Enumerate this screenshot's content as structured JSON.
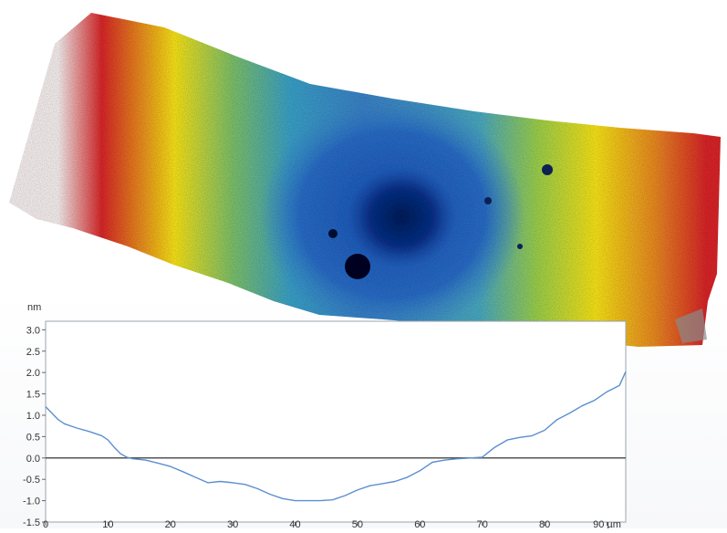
{
  "surface": {
    "rendering": "3D surface height map",
    "colormap": [
      "#f5eeee",
      "#d8282a",
      "#f6e21a",
      "#3b82c6",
      "#0d2a78"
    ]
  },
  "chart_data": {
    "type": "line",
    "title": "",
    "xlabel": "",
    "ylabel": "",
    "x_unit": "µm",
    "y_unit": "nm",
    "xlim": [
      0,
      93
    ],
    "ylim": [
      -1.5,
      3.2
    ],
    "x_ticks": [
      0,
      10,
      20,
      30,
      40,
      50,
      60,
      70,
      80,
      90
    ],
    "y_ticks": [
      -1.5,
      -1.0,
      -0.5,
      0.0,
      0.5,
      1.0,
      1.5,
      2.0,
      2.5,
      3.0
    ],
    "x_tick_labels": [
      "0",
      "10",
      "20",
      "30",
      "40",
      "50",
      "60",
      "70",
      "80",
      "90 µm"
    ],
    "y_tick_labels": [
      "-1.5",
      "-1.0",
      "-0.5",
      "0.0",
      "0.5",
      "1.0",
      "1.5",
      "2.0",
      "2.5",
      "3.0"
    ],
    "y_unit_label": "nm",
    "grid": true,
    "zero_line": true,
    "series": [
      {
        "color": "#5b8fd0",
        "x": [
          0,
          1,
          2,
          3,
          5,
          7,
          9,
          10,
          11,
          12,
          13,
          14,
          16,
          18,
          20,
          22,
          24,
          26,
          28,
          30,
          32,
          34,
          36,
          38,
          40,
          42,
          44,
          46,
          48,
          50,
          52,
          54,
          56,
          58,
          60,
          62,
          64,
          66,
          68,
          70,
          72,
          74,
          76,
          78,
          80,
          82,
          84,
          86,
          88,
          90,
          92,
          93
        ],
        "y": [
          1.2,
          1.05,
          0.9,
          0.8,
          0.7,
          0.62,
          0.52,
          0.42,
          0.25,
          0.1,
          0.02,
          -0.02,
          -0.05,
          -0.12,
          -0.2,
          -0.32,
          -0.45,
          -0.58,
          -0.55,
          -0.58,
          -0.62,
          -0.72,
          -0.85,
          -0.95,
          -1.0,
          -1.0,
          -1.0,
          -0.98,
          -0.88,
          -0.75,
          -0.65,
          -0.6,
          -0.55,
          -0.45,
          -0.3,
          -0.1,
          -0.05,
          -0.02,
          0.0,
          0.02,
          0.25,
          0.42,
          0.48,
          0.52,
          0.65,
          0.9,
          1.05,
          1.22,
          1.35,
          1.55,
          1.7,
          2.02
        ]
      }
    ]
  }
}
